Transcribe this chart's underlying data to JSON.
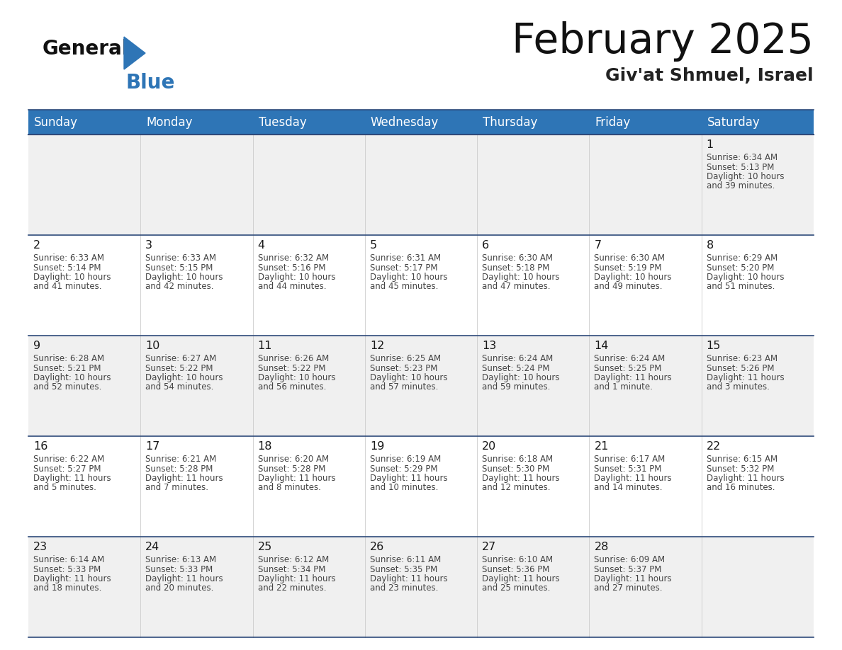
{
  "title": "February 2025",
  "subtitle": "Giv'at Shmuel, Israel",
  "header_bg": "#2e75b6",
  "header_text_color": "#ffffff",
  "days_of_week": [
    "Sunday",
    "Monday",
    "Tuesday",
    "Wednesday",
    "Thursday",
    "Friday",
    "Saturday"
  ],
  "cell_bg_row0": "#f0f0f0",
  "cell_bg_row1": "#ffffff",
  "divider_color": "#2e4a7a",
  "text_color": "#444444",
  "day_num_color": "#1a1a1a",
  "calendar_data": [
    [
      {
        "day": null
      },
      {
        "day": null
      },
      {
        "day": null
      },
      {
        "day": null
      },
      {
        "day": null
      },
      {
        "day": null
      },
      {
        "day": 1,
        "sunrise": "6:34 AM",
        "sunset": "5:13 PM",
        "daylight": "10 hours and 39 minutes."
      }
    ],
    [
      {
        "day": 2,
        "sunrise": "6:33 AM",
        "sunset": "5:14 PM",
        "daylight": "10 hours and 41 minutes."
      },
      {
        "day": 3,
        "sunrise": "6:33 AM",
        "sunset": "5:15 PM",
        "daylight": "10 hours and 42 minutes."
      },
      {
        "day": 4,
        "sunrise": "6:32 AM",
        "sunset": "5:16 PM",
        "daylight": "10 hours and 44 minutes."
      },
      {
        "day": 5,
        "sunrise": "6:31 AM",
        "sunset": "5:17 PM",
        "daylight": "10 hours and 45 minutes."
      },
      {
        "day": 6,
        "sunrise": "6:30 AM",
        "sunset": "5:18 PM",
        "daylight": "10 hours and 47 minutes."
      },
      {
        "day": 7,
        "sunrise": "6:30 AM",
        "sunset": "5:19 PM",
        "daylight": "10 hours and 49 minutes."
      },
      {
        "day": 8,
        "sunrise": "6:29 AM",
        "sunset": "5:20 PM",
        "daylight": "10 hours and 51 minutes."
      }
    ],
    [
      {
        "day": 9,
        "sunrise": "6:28 AM",
        "sunset": "5:21 PM",
        "daylight": "10 hours and 52 minutes."
      },
      {
        "day": 10,
        "sunrise": "6:27 AM",
        "sunset": "5:22 PM",
        "daylight": "10 hours and 54 minutes."
      },
      {
        "day": 11,
        "sunrise": "6:26 AM",
        "sunset": "5:22 PM",
        "daylight": "10 hours and 56 minutes."
      },
      {
        "day": 12,
        "sunrise": "6:25 AM",
        "sunset": "5:23 PM",
        "daylight": "10 hours and 57 minutes."
      },
      {
        "day": 13,
        "sunrise": "6:24 AM",
        "sunset": "5:24 PM",
        "daylight": "10 hours and 59 minutes."
      },
      {
        "day": 14,
        "sunrise": "6:24 AM",
        "sunset": "5:25 PM",
        "daylight": "11 hours and 1 minute."
      },
      {
        "day": 15,
        "sunrise": "6:23 AM",
        "sunset": "5:26 PM",
        "daylight": "11 hours and 3 minutes."
      }
    ],
    [
      {
        "day": 16,
        "sunrise": "6:22 AM",
        "sunset": "5:27 PM",
        "daylight": "11 hours and 5 minutes."
      },
      {
        "day": 17,
        "sunrise": "6:21 AM",
        "sunset": "5:28 PM",
        "daylight": "11 hours and 7 minutes."
      },
      {
        "day": 18,
        "sunrise": "6:20 AM",
        "sunset": "5:28 PM",
        "daylight": "11 hours and 8 minutes."
      },
      {
        "day": 19,
        "sunrise": "6:19 AM",
        "sunset": "5:29 PM",
        "daylight": "11 hours and 10 minutes."
      },
      {
        "day": 20,
        "sunrise": "6:18 AM",
        "sunset": "5:30 PM",
        "daylight": "11 hours and 12 minutes."
      },
      {
        "day": 21,
        "sunrise": "6:17 AM",
        "sunset": "5:31 PM",
        "daylight": "11 hours and 14 minutes."
      },
      {
        "day": 22,
        "sunrise": "6:15 AM",
        "sunset": "5:32 PM",
        "daylight": "11 hours and 16 minutes."
      }
    ],
    [
      {
        "day": 23,
        "sunrise": "6:14 AM",
        "sunset": "5:33 PM",
        "daylight": "11 hours and 18 minutes."
      },
      {
        "day": 24,
        "sunrise": "6:13 AM",
        "sunset": "5:33 PM",
        "daylight": "11 hours and 20 minutes."
      },
      {
        "day": 25,
        "sunrise": "6:12 AM",
        "sunset": "5:34 PM",
        "daylight": "11 hours and 22 minutes."
      },
      {
        "day": 26,
        "sunrise": "6:11 AM",
        "sunset": "5:35 PM",
        "daylight": "11 hours and 23 minutes."
      },
      {
        "day": 27,
        "sunrise": "6:10 AM",
        "sunset": "5:36 PM",
        "daylight": "11 hours and 25 minutes."
      },
      {
        "day": 28,
        "sunrise": "6:09 AM",
        "sunset": "5:37 PM",
        "daylight": "11 hours and 27 minutes."
      },
      {
        "day": null
      }
    ]
  ],
  "fig_width": 11.88,
  "fig_height": 9.18,
  "dpi": 100
}
